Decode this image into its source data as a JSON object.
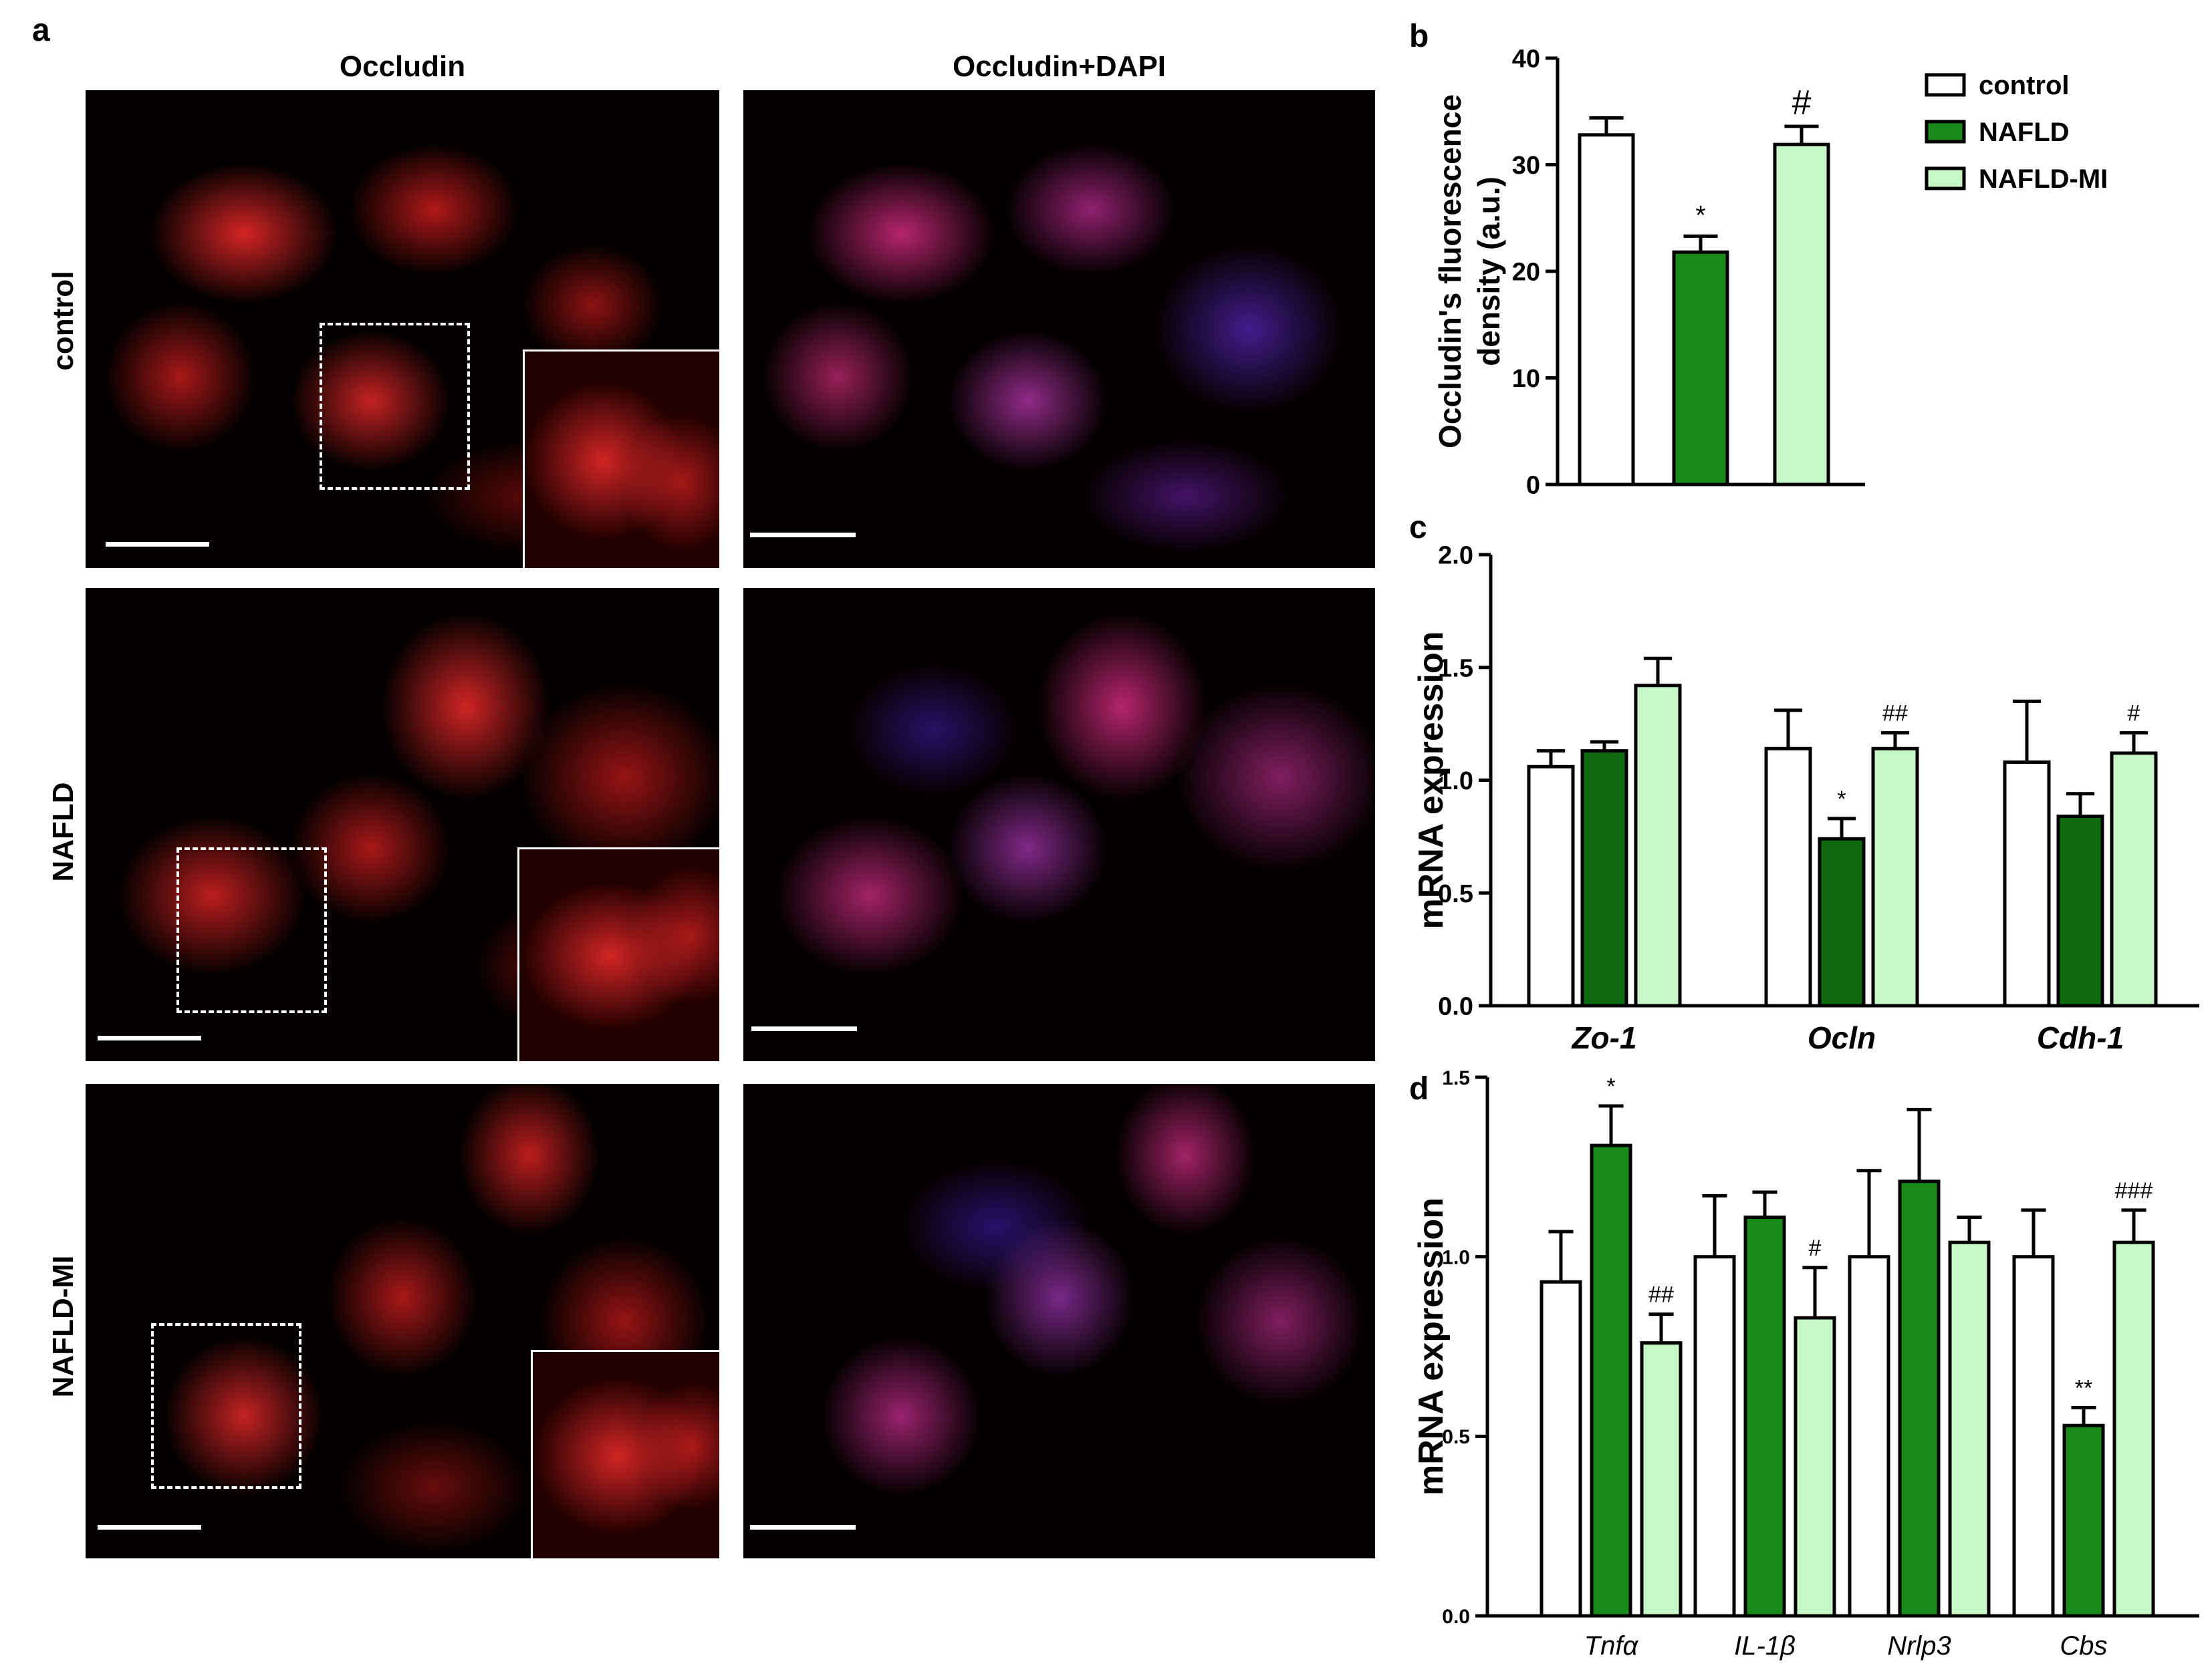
{
  "panel_a": {
    "letter": "a",
    "columns": [
      "Occludin",
      "Occludin+DAPI"
    ],
    "rows": [
      "control",
      "NAFLD",
      "NAFLD-MI"
    ]
  },
  "legend": {
    "entries": [
      {
        "label": "control",
        "color": "#ffffff"
      },
      {
        "label": "NAFLD",
        "color": "#1a8a1a"
      },
      {
        "label": "NAFLD-MI",
        "color": "#c6f7c6"
      }
    ]
  },
  "chart_data": [
    {
      "panel": "b",
      "type": "bar",
      "ylabel": "Occludin's fluorescence density (a.u.)",
      "ylim": [
        0,
        40
      ],
      "yticks": [
        0,
        10,
        20,
        30,
        40
      ],
      "categories": [
        "control",
        "NAFLD",
        "NAFLD-MI"
      ],
      "values": [
        32.8,
        21.8,
        31.9
      ],
      "errors": [
        1.6,
        1.5,
        1.7
      ],
      "annotations": [
        "",
        "*",
        "#"
      ],
      "colors": [
        "#ffffff",
        "#1a8a1a",
        "#c6f7c6"
      ]
    },
    {
      "panel": "c",
      "type": "bar",
      "ylabel": "mRNA expression",
      "ylim": [
        0,
        2.0
      ],
      "yticks": [
        "0.0",
        "0.5",
        "1.0",
        "1.5",
        "2.0"
      ],
      "categories": [
        "Zo-1",
        "Ocln",
        "Cdh-1"
      ],
      "series": [
        {
          "name": "control",
          "values": [
            1.06,
            1.14,
            1.08
          ],
          "errors": [
            0.07,
            0.17,
            0.27
          ],
          "annotations": [
            "",
            "",
            ""
          ]
        },
        {
          "name": "NAFLD",
          "values": [
            1.13,
            0.74,
            0.84
          ],
          "errors": [
            0.04,
            0.09,
            0.1
          ],
          "annotations": [
            "",
            "*",
            ""
          ]
        },
        {
          "name": "NAFLD-MI",
          "values": [
            1.42,
            1.14,
            1.12
          ],
          "errors": [
            0.12,
            0.07,
            0.09
          ],
          "annotations": [
            "",
            "##",
            "#"
          ]
        }
      ],
      "colors": [
        "#ffffff",
        "#0f6a0f",
        "#c6f7c6"
      ]
    },
    {
      "panel": "d",
      "type": "bar",
      "ylabel": "mRNA expression",
      "ylim": [
        0,
        1.5
      ],
      "yticks": [
        "0.0",
        "0.5",
        "1.0",
        "1.5"
      ],
      "categories": [
        "Tnfα",
        "IL-1β",
        "Nrlp3",
        "Cbs"
      ],
      "series": [
        {
          "name": "control",
          "values": [
            0.93,
            1.0,
            1.0,
            1.0
          ],
          "errors": [
            0.14,
            0.17,
            0.24,
            0.13
          ],
          "annotations": [
            "",
            "",
            "",
            ""
          ]
        },
        {
          "name": "NAFLD",
          "values": [
            1.31,
            1.11,
            1.21,
            0.53
          ],
          "errors": [
            0.11,
            0.07,
            0.2,
            0.05
          ],
          "annotations": [
            "*",
            "",
            "",
            "**"
          ]
        },
        {
          "name": "NAFLD-MI",
          "values": [
            0.76,
            0.83,
            1.04,
            1.04
          ],
          "errors": [
            0.08,
            0.14,
            0.07,
            0.09
          ],
          "annotations": [
            "##",
            "#",
            "",
            "###"
          ]
        }
      ],
      "colors": [
        "#ffffff",
        "#1a8a1a",
        "#c6f7c6"
      ]
    }
  ]
}
